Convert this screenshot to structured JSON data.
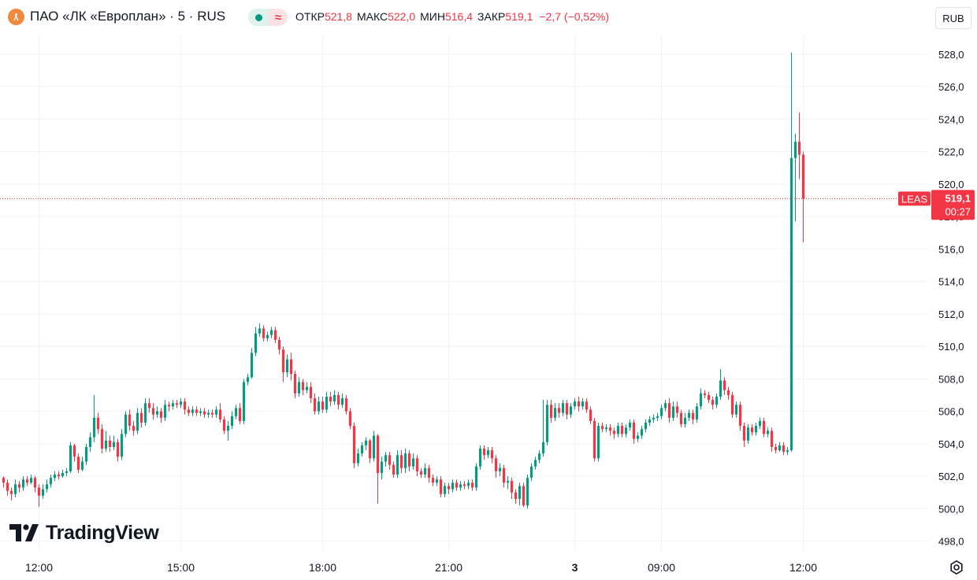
{
  "header": {
    "title": "ПАО «ЛК «Европлан» · 5 · RUS",
    "ohlc": [
      {
        "label": "ОТКР",
        "value": "521,8"
      },
      {
        "label": "МАКС",
        "value": "522,0"
      },
      {
        "label": "МИН",
        "value": "516,4"
      },
      {
        "label": "ЗАКР",
        "value": "519,1"
      }
    ],
    "change": "−2,7 (−0,52%)",
    "currency": "RUB",
    "logo_icon": "leasing-logo-icon",
    "market_status_icon": "market-open-dot-icon",
    "data_delay_icon": "delayed-data-icon"
  },
  "colors": {
    "up": "#089981",
    "down": "#f23645",
    "grid": "#f0f3fa",
    "text": "#131722",
    "label_bg": "#f23645"
  },
  "brand": {
    "name": "TradingView",
    "logo_icon": "tradingview-logo-icon"
  },
  "settings_icon": "gear-icon",
  "chart_data": {
    "type": "candlestick",
    "interval_minutes": 5,
    "ylim": [
      497.4,
      529.2
    ],
    "y_ticks": [
      "528,0",
      "526,0",
      "524,0",
      "522,0",
      "520,0",
      "518,0",
      "516,0",
      "514,0",
      "512,0",
      "510,0",
      "508,0",
      "506,0",
      "504,0",
      "502,0",
      "500,0",
      "498,0"
    ],
    "x_ticks": [
      "12:00",
      "15:00",
      "18:00",
      "21:00",
      "3",
      "09:00",
      "12:00"
    ],
    "last_price": {
      "symbol": "LEAS",
      "value": "519,1",
      "countdown": "00:27",
      "price": 519.1
    },
    "candles": [
      [
        501.9,
        501.6,
        502.0,
        501.3
      ],
      [
        501.6,
        501.1,
        501.8,
        500.8
      ],
      [
        501.1,
        500.9,
        501.3,
        500.5
      ],
      [
        500.9,
        501.5,
        501.8,
        500.7
      ],
      [
        501.5,
        501.3,
        501.7,
        501.0
      ],
      [
        501.3,
        501.8,
        502.0,
        501.1
      ],
      [
        501.8,
        501.6,
        502.0,
        501.4
      ],
      [
        501.6,
        501.9,
        502.1,
        501.5
      ],
      [
        501.9,
        501.3,
        502.0,
        501.0
      ],
      [
        501.3,
        500.8,
        501.5,
        500.1
      ],
      [
        500.8,
        501.2,
        501.5,
        500.6
      ],
      [
        501.2,
        501.5,
        501.8,
        501.0
      ],
      [
        501.5,
        501.9,
        502.1,
        501.3
      ],
      [
        501.9,
        502.1,
        502.3,
        501.7
      ],
      [
        502.1,
        502.0,
        502.3,
        501.8
      ],
      [
        502.0,
        502.2,
        502.4,
        501.9
      ],
      [
        502.2,
        502.3,
        502.5,
        502.0
      ],
      [
        502.3,
        503.9,
        504.1,
        502.2
      ],
      [
        503.9,
        503.2,
        504.0,
        502.9
      ],
      [
        503.2,
        502.4,
        503.4,
        502.2
      ],
      [
        502.4,
        502.9,
        503.2,
        502.3
      ],
      [
        502.9,
        503.8,
        504.0,
        502.7
      ],
      [
        503.8,
        504.4,
        504.7,
        503.5
      ],
      [
        504.4,
        505.6,
        507.0,
        504.1
      ],
      [
        505.6,
        504.9,
        505.9,
        504.6
      ],
      [
        504.9,
        503.7,
        505.2,
        503.4
      ],
      [
        503.7,
        504.2,
        504.8,
        503.5
      ],
      [
        504.2,
        503.8,
        504.5,
        503.5
      ],
      [
        503.8,
        504.1,
        504.5,
        503.6
      ],
      [
        504.1,
        503.2,
        504.3,
        502.9
      ],
      [
        503.2,
        504.6,
        504.9,
        503.0
      ],
      [
        504.6,
        505.8,
        506.0,
        504.4
      ],
      [
        505.8,
        505.1,
        506.1,
        504.8
      ],
      [
        505.1,
        504.8,
        505.4,
        504.5
      ],
      [
        504.8,
        505.9,
        506.2,
        504.6
      ],
      [
        505.9,
        505.3,
        506.2,
        505.0
      ],
      [
        505.3,
        506.5,
        506.8,
        505.1
      ],
      [
        506.5,
        506.2,
        506.8,
        505.9
      ],
      [
        506.2,
        505.8,
        506.5,
        505.5
      ],
      [
        505.8,
        506.0,
        506.3,
        505.6
      ],
      [
        506.0,
        505.6,
        506.2,
        505.3
      ],
      [
        505.6,
        506.4,
        506.7,
        505.4
      ],
      [
        506.4,
        506.3,
        506.6,
        506.0
      ],
      [
        506.3,
        506.5,
        506.7,
        506.1
      ],
      [
        506.5,
        506.4,
        506.7,
        506.2
      ],
      [
        506.4,
        506.6,
        506.8,
        506.2
      ],
      [
        506.6,
        506.1,
        506.8,
        505.8
      ],
      [
        506.1,
        505.9,
        506.3,
        505.7
      ],
      [
        505.9,
        506.1,
        506.3,
        505.7
      ],
      [
        506.1,
        505.9,
        506.3,
        505.7
      ],
      [
        505.9,
        506.0,
        506.2,
        505.7
      ],
      [
        506.0,
        505.8,
        506.2,
        505.6
      ],
      [
        505.8,
        505.9,
        506.1,
        505.6
      ],
      [
        505.9,
        505.8,
        506.1,
        505.6
      ],
      [
        505.8,
        506.1,
        506.3,
        505.6
      ],
      [
        506.1,
        505.5,
        506.5,
        505.3
      ],
      [
        505.5,
        504.8,
        505.7,
        504.6
      ],
      [
        504.8,
        505.1,
        505.4,
        504.2
      ],
      [
        505.1,
        505.7,
        506.0,
        504.9
      ],
      [
        505.7,
        506.2,
        506.4,
        505.5
      ],
      [
        506.2,
        505.4,
        506.5,
        505.2
      ],
      [
        505.4,
        507.8,
        508.0,
        505.2
      ],
      [
        507.8,
        508.1,
        508.3,
        507.6
      ],
      [
        508.1,
        509.6,
        509.9,
        508.0
      ],
      [
        509.6,
        510.8,
        511.2,
        509.4
      ],
      [
        510.8,
        511.1,
        511.4,
        510.6
      ],
      [
        511.1,
        510.5,
        511.3,
        510.3
      ],
      [
        510.5,
        510.7,
        510.9,
        510.3
      ],
      [
        510.7,
        511.0,
        511.2,
        510.5
      ],
      [
        511.0,
        510.4,
        511.2,
        510.2
      ],
      [
        510.4,
        509.8,
        510.6,
        509.5
      ],
      [
        509.8,
        508.4,
        510.0,
        507.8
      ],
      [
        508.4,
        509.2,
        509.5,
        508.1
      ],
      [
        509.2,
        508.3,
        509.6,
        507.9
      ],
      [
        508.3,
        507.1,
        508.5,
        506.8
      ],
      [
        507.1,
        507.8,
        508.1,
        506.9
      ],
      [
        507.8,
        507.3,
        508.0,
        507.0
      ],
      [
        507.3,
        507.5,
        507.8,
        507.1
      ],
      [
        507.5,
        506.8,
        507.8,
        506.5
      ],
      [
        506.8,
        506.0,
        507.1,
        505.8
      ],
      [
        506.0,
        506.6,
        506.9,
        505.8
      ],
      [
        506.6,
        506.1,
        506.9,
        505.9
      ],
      [
        506.1,
        506.9,
        507.2,
        505.9
      ],
      [
        506.9,
        506.6,
        507.2,
        506.3
      ],
      [
        506.6,
        507.0,
        507.3,
        506.4
      ],
      [
        507.0,
        506.4,
        507.2,
        506.1
      ],
      [
        506.4,
        506.8,
        507.1,
        506.2
      ],
      [
        506.8,
        506.0,
        507.0,
        505.8
      ],
      [
        506.0,
        505.1,
        506.2,
        504.9
      ],
      [
        505.1,
        502.8,
        505.3,
        502.5
      ],
      [
        502.8,
        503.4,
        503.7,
        502.6
      ],
      [
        503.4,
        503.9,
        504.1,
        503.2
      ],
      [
        503.9,
        504.2,
        504.4,
        503.6
      ],
      [
        504.2,
        503.1,
        504.3,
        502.8
      ],
      [
        503.1,
        504.5,
        504.8,
        502.9
      ],
      [
        504.5,
        502.2,
        504.6,
        500.3
      ],
      [
        502.2,
        502.9,
        503.2,
        501.8
      ],
      [
        502.9,
        503.3,
        503.5,
        502.6
      ],
      [
        503.3,
        502.7,
        503.5,
        502.4
      ],
      [
        502.7,
        502.1,
        502.9,
        501.9
      ],
      [
        502.1,
        503.3,
        503.6,
        501.9
      ],
      [
        503.3,
        502.5,
        503.6,
        502.2
      ],
      [
        502.5,
        503.4,
        503.7,
        502.2
      ],
      [
        503.4,
        502.6,
        503.6,
        502.3
      ],
      [
        502.6,
        503.1,
        503.4,
        502.4
      ],
      [
        503.1,
        502.3,
        503.3,
        502.0
      ],
      [
        502.3,
        502.1,
        502.5,
        501.9
      ],
      [
        502.1,
        502.5,
        502.8,
        501.9
      ],
      [
        502.5,
        501.9,
        502.7,
        501.6
      ],
      [
        501.9,
        501.6,
        502.1,
        501.4
      ],
      [
        501.6,
        501.8,
        502.0,
        501.4
      ],
      [
        501.8,
        500.9,
        502.0,
        500.7
      ],
      [
        500.9,
        501.4,
        501.6,
        500.7
      ],
      [
        501.4,
        501.2,
        501.6,
        500.9
      ],
      [
        501.2,
        501.6,
        501.8,
        501.0
      ],
      [
        501.6,
        501.3,
        501.8,
        501.1
      ],
      [
        501.3,
        501.5,
        501.7,
        501.1
      ],
      [
        501.5,
        501.4,
        501.7,
        501.2
      ],
      [
        501.4,
        501.6,
        501.8,
        501.2
      ],
      [
        501.6,
        501.3,
        501.8,
        501.1
      ],
      [
        501.3,
        502.6,
        502.8,
        501.1
      ],
      [
        502.6,
        503.7,
        503.9,
        502.4
      ],
      [
        503.7,
        503.3,
        503.9,
        503.0
      ],
      [
        503.3,
        503.6,
        503.8,
        503.1
      ],
      [
        503.6,
        503.1,
        503.8,
        502.8
      ],
      [
        503.1,
        502.3,
        503.3,
        501.9
      ],
      [
        502.3,
        502.5,
        502.8,
        502.0
      ],
      [
        502.5,
        501.6,
        502.7,
        501.3
      ],
      [
        501.6,
        501.7,
        502.0,
        501.2
      ],
      [
        501.7,
        501.0,
        501.9,
        500.6
      ],
      [
        501.0,
        500.6,
        501.2,
        500.3
      ],
      [
        500.6,
        501.4,
        501.6,
        500.2
      ],
      [
        501.4,
        500.2,
        501.6,
        500.1
      ],
      [
        500.2,
        501.9,
        502.1,
        500.0
      ],
      [
        501.9,
        502.6,
        502.8,
        501.7
      ],
      [
        502.6,
        503.0,
        503.2,
        502.4
      ],
      [
        503.0,
        503.4,
        503.6,
        502.8
      ],
      [
        503.4,
        504.1,
        506.7,
        503.2
      ],
      [
        504.1,
        506.4,
        506.7,
        503.9
      ],
      [
        506.4,
        505.6,
        506.7,
        505.3
      ],
      [
        505.6,
        506.2,
        506.5,
        505.4
      ],
      [
        506.2,
        505.9,
        506.5,
        505.6
      ],
      [
        505.9,
        506.5,
        506.7,
        505.7
      ],
      [
        506.5,
        505.8,
        506.7,
        505.5
      ],
      [
        505.8,
        506.3,
        506.5,
        505.6
      ],
      [
        506.3,
        506.6,
        506.8,
        506.1
      ],
      [
        506.6,
        506.3,
        506.9,
        506.0
      ],
      [
        506.3,
        506.6,
        506.8,
        506.1
      ],
      [
        506.6,
        506.1,
        506.8,
        505.9
      ],
      [
        506.1,
        505.4,
        506.3,
        505.2
      ],
      [
        505.4,
        503.1,
        505.6,
        502.9
      ],
      [
        503.1,
        505.1,
        505.3,
        502.9
      ],
      [
        505.1,
        504.9,
        505.3,
        504.7
      ],
      [
        504.9,
        505.0,
        505.2,
        504.7
      ],
      [
        505.0,
        504.8,
        505.2,
        504.5
      ],
      [
        504.8,
        504.6,
        505.0,
        504.3
      ],
      [
        504.6,
        505.1,
        505.3,
        504.4
      ],
      [
        505.1,
        504.6,
        505.3,
        504.4
      ],
      [
        504.6,
        505.0,
        505.2,
        504.4
      ],
      [
        505.0,
        505.3,
        505.5,
        504.8
      ],
      [
        505.3,
        504.3,
        505.5,
        504.0
      ],
      [
        504.3,
        504.5,
        504.7,
        504.1
      ],
      [
        504.5,
        504.9,
        505.1,
        504.3
      ],
      [
        504.9,
        505.3,
        505.5,
        504.7
      ],
      [
        505.3,
        505.5,
        505.7,
        505.1
      ],
      [
        505.5,
        505.6,
        505.8,
        505.3
      ],
      [
        505.6,
        505.7,
        505.9,
        505.4
      ],
      [
        505.7,
        506.2,
        506.4,
        505.5
      ],
      [
        506.2,
        506.5,
        506.7,
        506.0
      ],
      [
        506.5,
        505.6,
        506.8,
        505.3
      ],
      [
        505.6,
        506.3,
        506.6,
        505.4
      ],
      [
        506.3,
        505.9,
        506.6,
        505.6
      ],
      [
        505.9,
        505.2,
        506.1,
        505.0
      ],
      [
        505.2,
        505.6,
        505.9,
        505.0
      ],
      [
        505.6,
        505.9,
        506.1,
        505.4
      ],
      [
        505.9,
        505.5,
        506.1,
        505.2
      ],
      [
        505.5,
        506.3,
        506.5,
        505.3
      ],
      [
        506.3,
        507.1,
        507.4,
        506.1
      ],
      [
        507.1,
        507.0,
        507.3,
        506.8
      ],
      [
        507.0,
        506.7,
        507.2,
        506.5
      ],
      [
        506.7,
        506.4,
        506.9,
        506.1
      ],
      [
        506.4,
        506.9,
        507.1,
        506.2
      ],
      [
        506.9,
        507.9,
        508.6,
        506.7
      ],
      [
        507.9,
        507.3,
        508.1,
        507.0
      ],
      [
        507.3,
        507.0,
        507.5,
        506.7
      ],
      [
        507.0,
        505.8,
        507.2,
        505.6
      ],
      [
        505.8,
        506.4,
        506.6,
        505.6
      ],
      [
        506.4,
        505.1,
        506.6,
        504.8
      ],
      [
        505.1,
        504.2,
        505.3,
        503.8
      ],
      [
        504.2,
        505.0,
        505.2,
        504.0
      ],
      [
        505.0,
        504.7,
        505.2,
        504.5
      ],
      [
        504.7,
        505.1,
        505.3,
        504.5
      ],
      [
        505.1,
        505.4,
        505.6,
        504.9
      ],
      [
        505.4,
        504.6,
        505.6,
        504.4
      ],
      [
        504.6,
        504.8,
        505.0,
        504.4
      ],
      [
        504.8,
        503.8,
        505.0,
        503.5
      ],
      [
        503.8,
        503.6,
        504.0,
        503.4
      ],
      [
        503.6,
        503.9,
        504.1,
        503.5
      ],
      [
        503.9,
        503.5,
        504.1,
        503.3
      ],
      [
        503.5,
        503.6,
        503.8,
        503.3
      ],
      [
        503.6,
        521.6,
        528.1,
        503.5
      ],
      [
        521.6,
        522.6,
        523.1,
        517.7
      ],
      [
        522.6,
        521.8,
        524.4,
        520.3
      ],
      [
        521.8,
        519.1,
        522.0,
        516.4
      ]
    ]
  }
}
